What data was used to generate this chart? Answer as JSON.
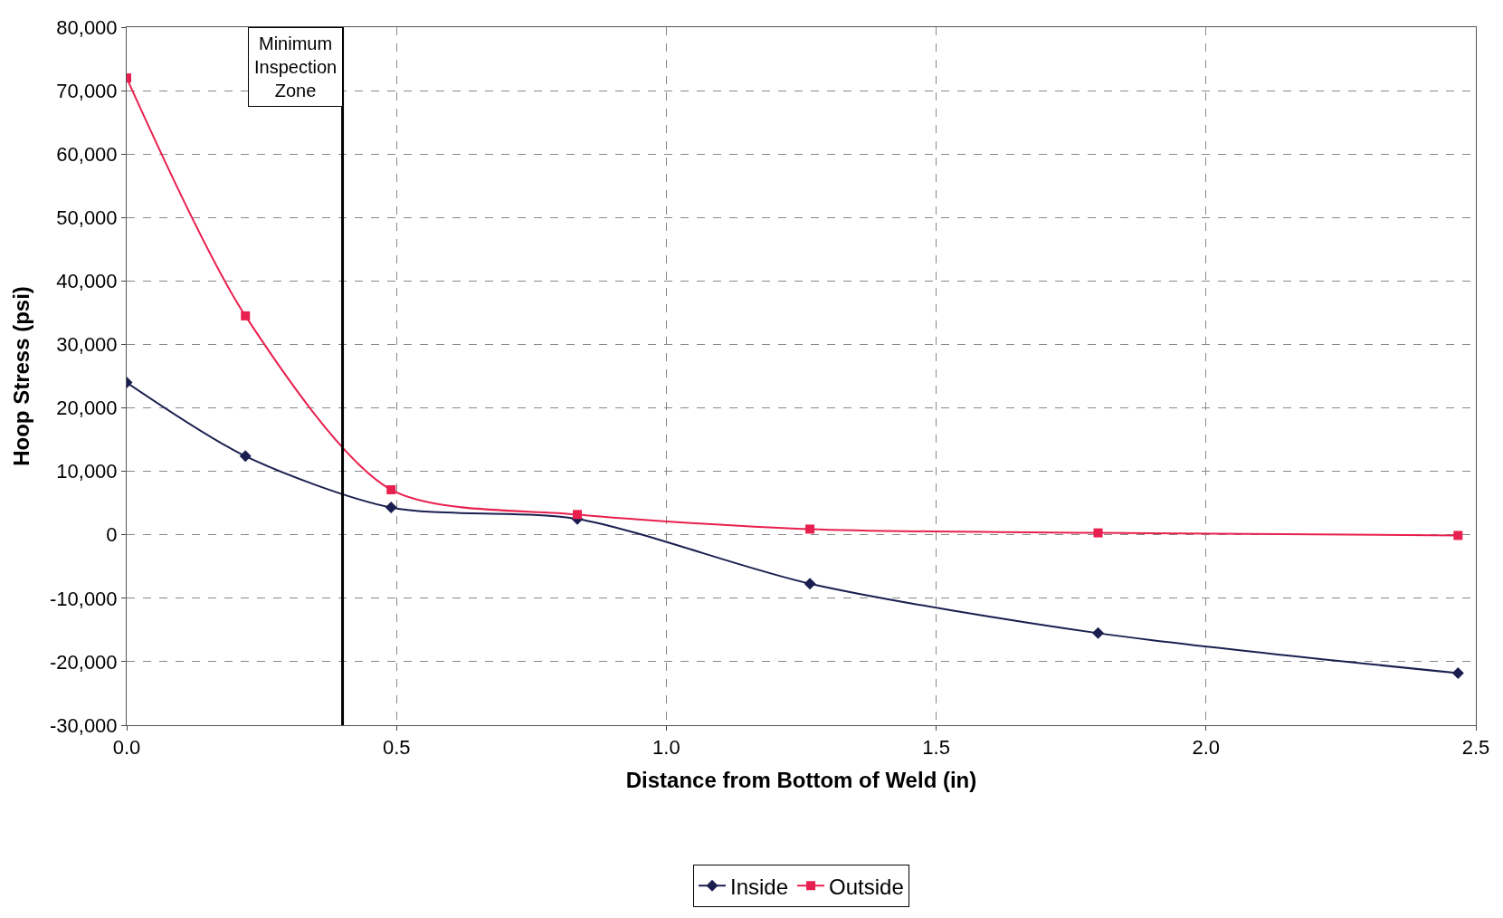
{
  "chart_data": {
    "type": "line",
    "xlabel": "Distance from Bottom of Weld (in)",
    "ylabel": "Hoop Stress (psi)",
    "series": [
      {
        "name": "Inside",
        "color": "#1a1f4f",
        "marker": "diamond",
        "x": [
          0.0,
          0.22,
          0.49,
          0.835,
          1.266,
          1.8,
          2.467
        ],
        "values": [
          24000,
          12400,
          4300,
          2500,
          -7700,
          -15500,
          -21800
        ]
      },
      {
        "name": "Outside",
        "color": "#e8204f",
        "marker": "square",
        "x": [
          0.0,
          0.22,
          0.49,
          0.835,
          1.266,
          1.8,
          2.467
        ],
        "values": [
          72000,
          34500,
          7100,
          3200,
          900,
          300,
          -100
        ]
      }
    ],
    "xlim": [
      0,
      2.5
    ],
    "xticks": [
      {
        "value": 0,
        "label": "0.0"
      },
      0.5,
      {
        "value": 1,
        "label": "1.0"
      },
      1.5,
      {
        "value": 2,
        "label": "2.0"
      },
      2.5
    ],
    "ylim": [
      -30000,
      80000
    ],
    "yticks": [
      {
        "value": -30000,
        "label": "-30,000"
      },
      {
        "value": -20000,
        "label": "-20,000"
      },
      {
        "value": -10000,
        "label": "-10,000"
      },
      0,
      {
        "value": 10000,
        "label": "10,000"
      },
      {
        "value": 20000,
        "label": "20,000"
      },
      {
        "value": 30000,
        "label": "30,000"
      },
      {
        "value": 40000,
        "label": "40,000"
      },
      {
        "value": 50000,
        "label": "50,000"
      },
      {
        "value": 60000,
        "label": "60,000"
      },
      {
        "value": 70000,
        "label": "70,000"
      },
      {
        "value": 80000,
        "label": "80,000"
      }
    ],
    "ref_lines": [
      {
        "axis": "x",
        "value": 0.4,
        "label": "Minimum Inspection Zone",
        "color": "#000000"
      }
    ],
    "grid": true,
    "legend": "bottom",
    "line_style": "solid"
  }
}
